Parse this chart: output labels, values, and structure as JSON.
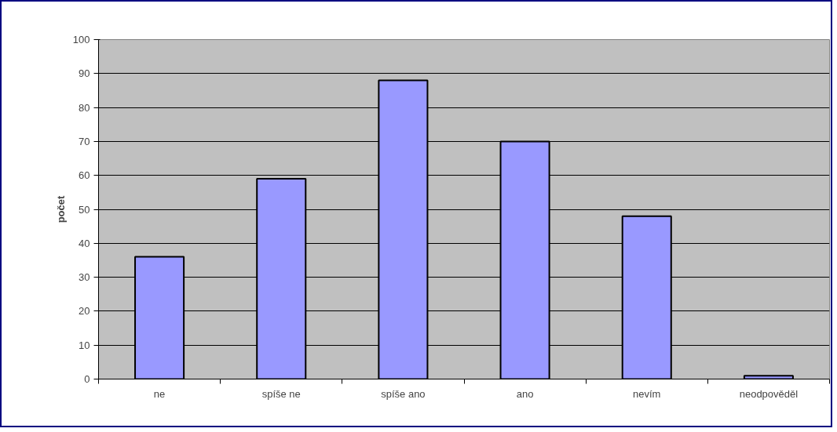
{
  "chart_data": {
    "type": "bar",
    "ylabel": "počet",
    "categories": [
      "ne",
      "spíše ne",
      "spíše ano",
      "ano",
      "nevím",
      "neodpověděl"
    ],
    "values": [
      36,
      59,
      88,
      70,
      48,
      1
    ],
    "color": "#9999ff",
    "ylim": [
      0,
      100
    ],
    "yticks": [
      0,
      10,
      20,
      30,
      40,
      50,
      60,
      70,
      80,
      90,
      100
    ],
    "grid": "y"
  }
}
